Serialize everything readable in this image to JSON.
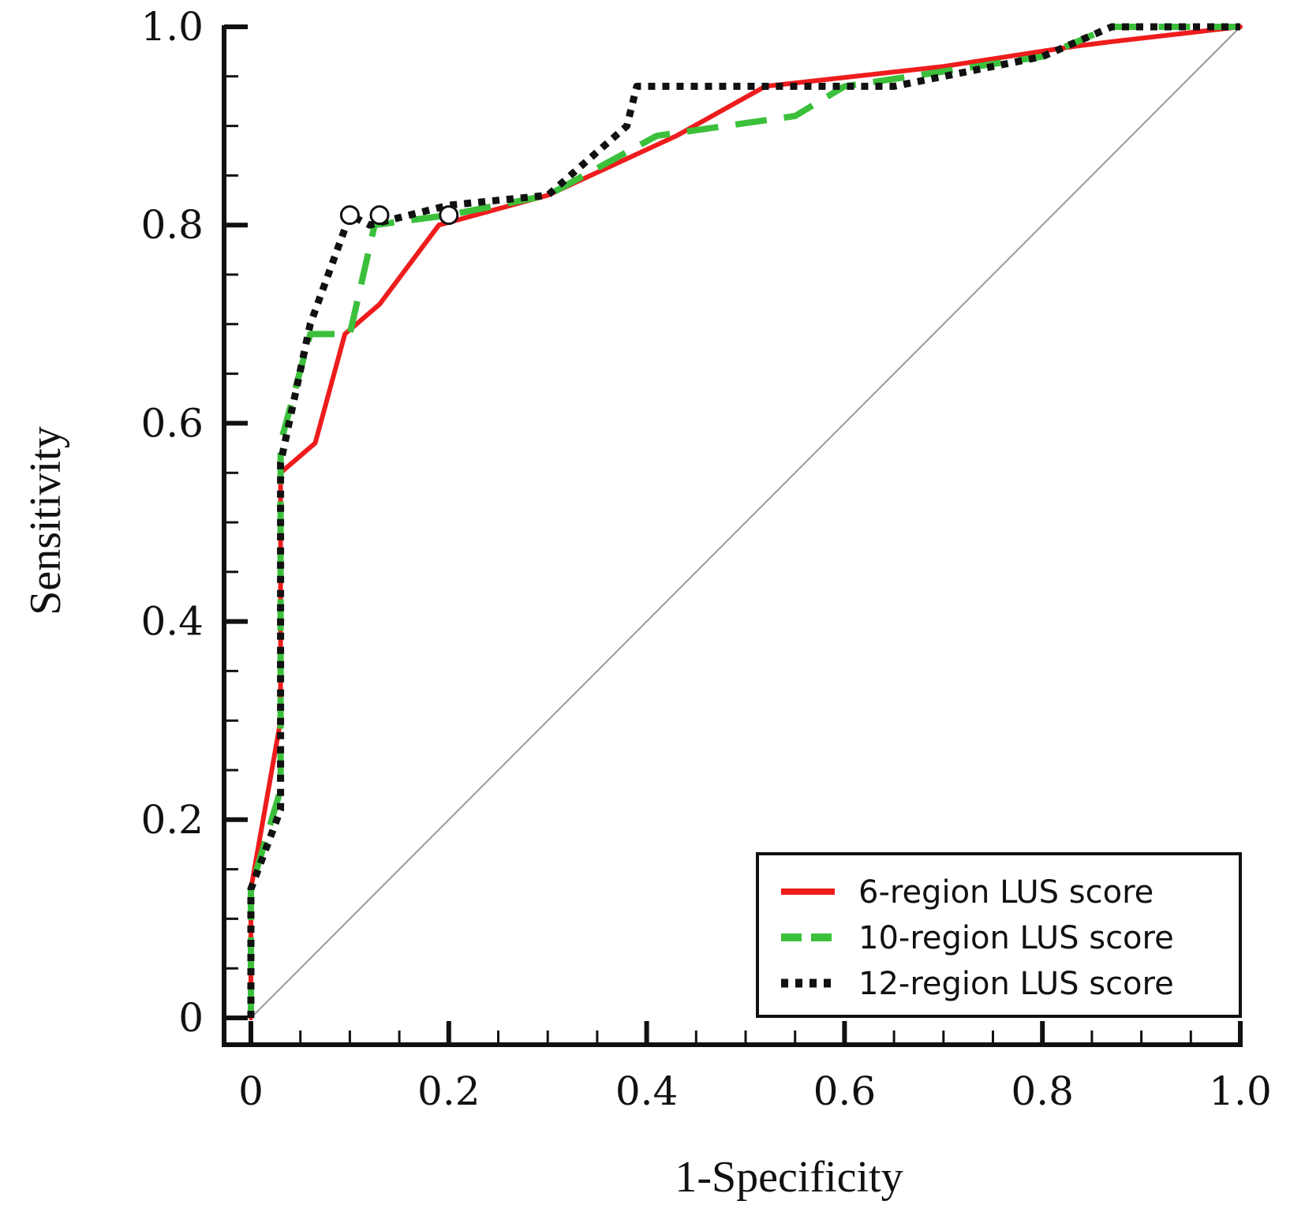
{
  "chart_data": {
    "type": "line",
    "title": "",
    "xlabel": "1-Specificity",
    "ylabel": "Sensitivity",
    "xlim": [
      0,
      1
    ],
    "ylim": [
      0,
      1
    ],
    "x_ticks": [
      "0",
      "0.2",
      "0.4",
      "0.6",
      "0.8",
      "1.0"
    ],
    "y_ticks": [
      "0",
      "0.2",
      "0.4",
      "0.6",
      "0.8",
      "1.0"
    ],
    "grid": false,
    "legend_position": "bottom-right",
    "reference_line": {
      "from": [
        0,
        0
      ],
      "to": [
        1,
        1
      ],
      "color": "#9a9a9a"
    },
    "series": [
      {
        "name": "6-region LUS score",
        "color": "#ee1c1c",
        "style": "solid",
        "points": [
          [
            0,
            0
          ],
          [
            0,
            0.13
          ],
          [
            0.03,
            0.3
          ],
          [
            0.03,
            0.55
          ],
          [
            0.065,
            0.58
          ],
          [
            0.095,
            0.69
          ],
          [
            0.13,
            0.72
          ],
          [
            0.19,
            0.8
          ],
          [
            0.3,
            0.83
          ],
          [
            0.43,
            0.89
          ],
          [
            0.52,
            0.94
          ],
          [
            0.7,
            0.96
          ],
          [
            0.83,
            0.98
          ],
          [
            0.87,
            0.985
          ],
          [
            1,
            1
          ]
        ]
      },
      {
        "name": "10-region LUS score",
        "color": "#3cc03c",
        "style": "dashed",
        "points": [
          [
            0,
            0
          ],
          [
            0,
            0.13
          ],
          [
            0.03,
            0.23
          ],
          [
            0.03,
            0.58
          ],
          [
            0.06,
            0.69
          ],
          [
            0.1,
            0.69
          ],
          [
            0.125,
            0.8
          ],
          [
            0.2,
            0.81
          ],
          [
            0.3,
            0.83
          ],
          [
            0.41,
            0.89
          ],
          [
            0.55,
            0.91
          ],
          [
            0.6,
            0.94
          ],
          [
            0.8,
            0.97
          ],
          [
            0.87,
            1
          ],
          [
            1,
            1
          ]
        ]
      },
      {
        "name": "12-region LUS score",
        "color": "#111111",
        "style": "dotted",
        "points": [
          [
            0,
            0
          ],
          [
            0,
            0.13
          ],
          [
            0.03,
            0.21
          ],
          [
            0.03,
            0.56
          ],
          [
            0.06,
            0.7
          ],
          [
            0.1,
            0.81
          ],
          [
            0.12,
            0.8
          ],
          [
            0.2,
            0.82
          ],
          [
            0.3,
            0.83
          ],
          [
            0.38,
            0.9
          ],
          [
            0.39,
            0.94
          ],
          [
            0.65,
            0.94
          ],
          [
            0.8,
            0.97
          ],
          [
            0.87,
            1
          ],
          [
            1,
            1
          ]
        ]
      }
    ],
    "markers": [
      {
        "x": 0.1,
        "y": 0.81
      },
      {
        "x": 0.13,
        "y": 0.81
      },
      {
        "x": 0.2,
        "y": 0.81
      }
    ]
  }
}
